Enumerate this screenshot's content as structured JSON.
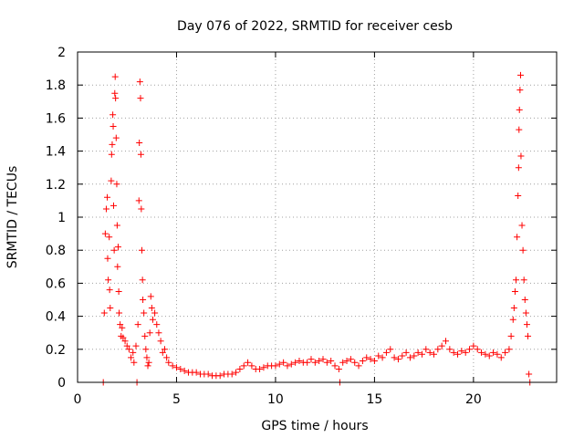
{
  "chart_data": {
    "type": "scatter",
    "title": "Day 076 of 2022, SRMTID for receiver cesb",
    "xlabel": "GPS time / hours",
    "ylabel": "SRMTID / TECUs",
    "xlim": [
      0,
      24.2
    ],
    "ylim": [
      0,
      2
    ],
    "xticks": [
      0,
      5,
      10,
      15,
      20
    ],
    "yticks": [
      0,
      0.2,
      0.4,
      0.6,
      0.8,
      1,
      1.2,
      1.4,
      1.6,
      1.8,
      2
    ],
    "xtick_labels": [
      "0",
      "5",
      "10",
      "15",
      "20"
    ],
    "ytick_labels": [
      "0",
      "0.2",
      "0.4",
      "0.6",
      "0.8",
      "1",
      "1.2",
      "1.4",
      "1.6",
      "1.8",
      "2"
    ],
    "grid": true,
    "marker": "+",
    "series": [
      {
        "name": "SRMTID",
        "color": "#ff0000",
        "points": [
          [
            1.3,
            0.0
          ],
          [
            1.35,
            0.42
          ],
          [
            1.4,
            0.9
          ],
          [
            1.45,
            1.05
          ],
          [
            1.5,
            1.12
          ],
          [
            1.52,
            0.75
          ],
          [
            1.55,
            0.62
          ],
          [
            1.6,
            0.88
          ],
          [
            1.62,
            0.56
          ],
          [
            1.65,
            0.45
          ],
          [
            1.7,
            1.22
          ],
          [
            1.72,
            1.38
          ],
          [
            1.75,
            1.44
          ],
          [
            1.78,
            1.62
          ],
          [
            1.8,
            1.55
          ],
          [
            1.82,
            1.07
          ],
          [
            1.85,
            0.8
          ],
          [
            1.88,
            1.75
          ],
          [
            1.9,
            1.85
          ],
          [
            1.92,
            1.72
          ],
          [
            1.95,
            1.48
          ],
          [
            1.98,
            1.2
          ],
          [
            2.0,
            0.95
          ],
          [
            2.02,
            0.7
          ],
          [
            2.05,
            0.82
          ],
          [
            2.08,
            0.55
          ],
          [
            2.1,
            0.42
          ],
          [
            2.15,
            0.35
          ],
          [
            2.2,
            0.28
          ],
          [
            2.25,
            0.33
          ],
          [
            2.3,
            0.27
          ],
          [
            2.4,
            0.25
          ],
          [
            2.5,
            0.22
          ],
          [
            2.6,
            0.2
          ],
          [
            2.7,
            0.15
          ],
          [
            2.8,
            0.18
          ],
          [
            2.85,
            0.12
          ],
          [
            2.95,
            0.22
          ],
          [
            3.0,
            0.0
          ],
          [
            3.05,
            0.35
          ],
          [
            3.1,
            1.1
          ],
          [
            3.12,
            1.45
          ],
          [
            3.15,
            1.82
          ],
          [
            3.18,
            1.72
          ],
          [
            3.2,
            1.38
          ],
          [
            3.22,
            1.05
          ],
          [
            3.25,
            0.8
          ],
          [
            3.28,
            0.62
          ],
          [
            3.3,
            0.5
          ],
          [
            3.35,
            0.42
          ],
          [
            3.4,
            0.28
          ],
          [
            3.45,
            0.2
          ],
          [
            3.5,
            0.15
          ],
          [
            3.55,
            0.1
          ],
          [
            3.6,
            0.12
          ],
          [
            3.65,
            0.3
          ],
          [
            3.7,
            0.52
          ],
          [
            3.75,
            0.45
          ],
          [
            3.8,
            0.38
          ],
          [
            3.9,
            0.42
          ],
          [
            4.0,
            0.35
          ],
          [
            4.1,
            0.3
          ],
          [
            4.2,
            0.25
          ],
          [
            4.3,
            0.18
          ],
          [
            4.4,
            0.2
          ],
          [
            4.5,
            0.15
          ],
          [
            4.6,
            0.12
          ],
          [
            4.8,
            0.1
          ],
          [
            5.0,
            0.09
          ],
          [
            5.2,
            0.08
          ],
          [
            5.4,
            0.07
          ],
          [
            5.6,
            0.06
          ],
          [
            5.8,
            0.06
          ],
          [
            6.0,
            0.06
          ],
          [
            6.2,
            0.05
          ],
          [
            6.4,
            0.05
          ],
          [
            6.6,
            0.05
          ],
          [
            6.8,
            0.04
          ],
          [
            7.0,
            0.04
          ],
          [
            7.2,
            0.04
          ],
          [
            7.4,
            0.05
          ],
          [
            7.6,
            0.05
          ],
          [
            7.8,
            0.05
          ],
          [
            8.0,
            0.06
          ],
          [
            8.2,
            0.08
          ],
          [
            8.4,
            0.1
          ],
          [
            8.6,
            0.12
          ],
          [
            8.8,
            0.1
          ],
          [
            9.0,
            0.08
          ],
          [
            9.2,
            0.08
          ],
          [
            9.4,
            0.09
          ],
          [
            9.6,
            0.1
          ],
          [
            9.8,
            0.1
          ],
          [
            10.0,
            0.1
          ],
          [
            10.2,
            0.11
          ],
          [
            10.4,
            0.12
          ],
          [
            10.6,
            0.1
          ],
          [
            10.8,
            0.11
          ],
          [
            11.0,
            0.12
          ],
          [
            11.2,
            0.13
          ],
          [
            11.4,
            0.12
          ],
          [
            11.6,
            0.12
          ],
          [
            11.8,
            0.14
          ],
          [
            12.0,
            0.12
          ],
          [
            12.2,
            0.13
          ],
          [
            12.4,
            0.14
          ],
          [
            12.6,
            0.12
          ],
          [
            12.8,
            0.13
          ],
          [
            13.0,
            0.1
          ],
          [
            13.2,
            0.08
          ],
          [
            13.25,
            0.0
          ],
          [
            13.4,
            0.12
          ],
          [
            13.6,
            0.13
          ],
          [
            13.8,
            0.14
          ],
          [
            14.0,
            0.12
          ],
          [
            14.2,
            0.1
          ],
          [
            14.4,
            0.13
          ],
          [
            14.6,
            0.15
          ],
          [
            14.8,
            0.14
          ],
          [
            15.0,
            0.13
          ],
          [
            15.2,
            0.16
          ],
          [
            15.4,
            0.15
          ],
          [
            15.6,
            0.18
          ],
          [
            15.8,
            0.2
          ],
          [
            16.0,
            0.15
          ],
          [
            16.2,
            0.14
          ],
          [
            16.4,
            0.16
          ],
          [
            16.6,
            0.18
          ],
          [
            16.8,
            0.15
          ],
          [
            17.0,
            0.16
          ],
          [
            17.2,
            0.18
          ],
          [
            17.4,
            0.17
          ],
          [
            17.6,
            0.2
          ],
          [
            17.8,
            0.18
          ],
          [
            18.0,
            0.17
          ],
          [
            18.2,
            0.2
          ],
          [
            18.4,
            0.22
          ],
          [
            18.6,
            0.25
          ],
          [
            18.8,
            0.2
          ],
          [
            19.0,
            0.18
          ],
          [
            19.2,
            0.17
          ],
          [
            19.4,
            0.19
          ],
          [
            19.6,
            0.18
          ],
          [
            19.8,
            0.2
          ],
          [
            20.0,
            0.22
          ],
          [
            20.2,
            0.2
          ],
          [
            20.4,
            0.18
          ],
          [
            20.6,
            0.17
          ],
          [
            20.8,
            0.16
          ],
          [
            21.0,
            0.18
          ],
          [
            21.2,
            0.17
          ],
          [
            21.4,
            0.15
          ],
          [
            21.6,
            0.18
          ],
          [
            21.8,
            0.2
          ],
          [
            21.9,
            0.28
          ],
          [
            22.0,
            0.38
          ],
          [
            22.05,
            0.45
          ],
          [
            22.1,
            0.55
          ],
          [
            22.15,
            0.62
          ],
          [
            22.2,
            0.88
          ],
          [
            22.25,
            1.13
          ],
          [
            22.28,
            1.3
          ],
          [
            22.3,
            1.53
          ],
          [
            22.32,
            1.65
          ],
          [
            22.35,
            1.77
          ],
          [
            22.38,
            1.86
          ],
          [
            22.4,
            1.37
          ],
          [
            22.45,
            0.95
          ],
          [
            22.5,
            0.8
          ],
          [
            22.55,
            0.62
          ],
          [
            22.6,
            0.5
          ],
          [
            22.65,
            0.42
          ],
          [
            22.7,
            0.35
          ],
          [
            22.75,
            0.28
          ],
          [
            22.8,
            0.05
          ],
          [
            22.85,
            0.0
          ]
        ]
      }
    ]
  }
}
